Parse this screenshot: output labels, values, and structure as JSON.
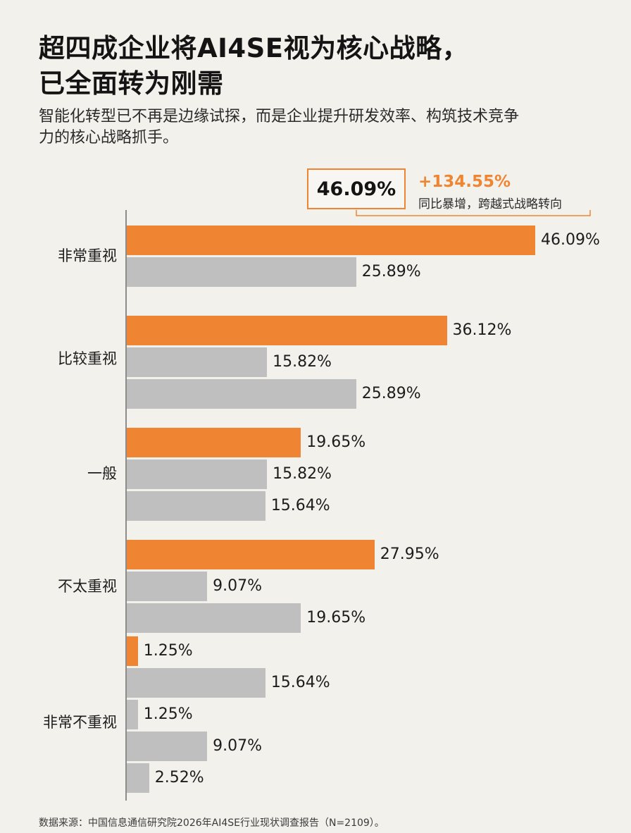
{
  "title_line1": "超四成企业将AI4SE视为核心战略，",
  "title_line2": "已全面转为刚需",
  "subtitle_line1": "智能化转型已不再是边缘试探，而是企业提升研发效率、构筑技术竞争",
  "subtitle_line2": "力的核心战略抓手。",
  "callout": {
    "value": "46.09%",
    "growth": "+134.55%",
    "note": "同比暴增，跨越式战略转向"
  },
  "source": "数据来源：中国信息通信研究院2026年AI4SE行业现状调查报告（N=2109）。",
  "colors": {
    "highlight": "#ef8532",
    "comparison": "#bfbfbf",
    "background": "#f2f1ec"
  },
  "chart_data": {
    "type": "bar",
    "orientation": "horizontal",
    "xlim": [
      0,
      50
    ],
    "categories": [
      "非常重视",
      "比较重视",
      "一般",
      "不太重视",
      "非常不重视"
    ],
    "groups": [
      {
        "category": "非常重视",
        "bars": [
          {
            "value": 46.09,
            "label": "46.09%",
            "color": "orange"
          },
          {
            "value": 25.89,
            "label": "25.89%",
            "color": "gray"
          }
        ]
      },
      {
        "category": "比较重视",
        "bars": [
          {
            "value": 36.12,
            "label": "36.12%",
            "color": "orange"
          },
          {
            "value": 15.82,
            "label": "15.82%",
            "color": "gray"
          },
          {
            "value": 25.89,
            "label": "25.89%",
            "color": "gray"
          }
        ]
      },
      {
        "category": "一般",
        "bars": [
          {
            "value": 19.65,
            "label": "19.65%",
            "color": "orange"
          },
          {
            "value": 15.82,
            "label": "15.82%",
            "color": "gray"
          },
          {
            "value": 15.64,
            "label": "15.64%",
            "color": "gray"
          }
        ]
      },
      {
        "category": "不太重视",
        "bars": [
          {
            "value": 27.95,
            "label": "27.95%",
            "color": "orange"
          },
          {
            "value": 9.07,
            "label": "9.07%",
            "color": "gray"
          },
          {
            "value": 19.65,
            "label": "19.65%",
            "color": "gray"
          }
        ]
      },
      {
        "category": "非常不重视",
        "bars": [
          {
            "value": 1.25,
            "label": "1.25%",
            "color": "orange"
          },
          {
            "value": 15.64,
            "label": "15.64%",
            "color": "gray"
          },
          {
            "value": 1.25,
            "label": "1.25%",
            "color": "gray"
          },
          {
            "value": 9.07,
            "label": "9.07%",
            "color": "gray"
          },
          {
            "value": 2.52,
            "label": "2.52%",
            "color": "gray"
          }
        ]
      }
    ]
  }
}
